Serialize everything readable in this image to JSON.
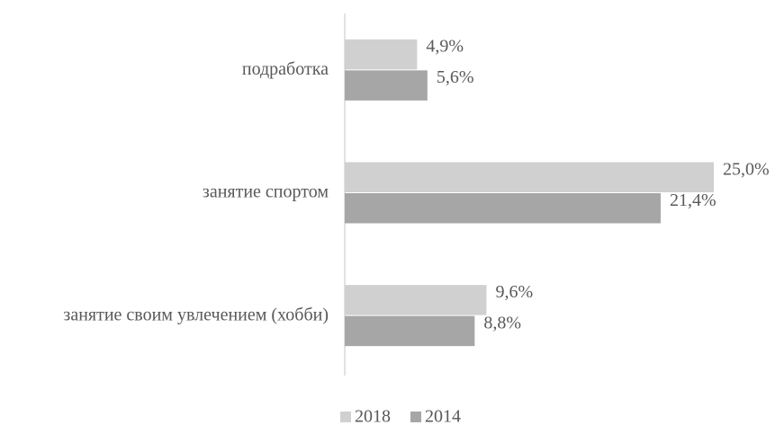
{
  "chart_data": {
    "type": "hbar",
    "categories": [
      "подработка",
      "занятие спортом",
      "занятие своим увлечением (хобби)"
    ],
    "series": [
      {
        "name": "2018",
        "color": "#d0d0d0",
        "values": [
          4.9,
          25.0,
          9.6
        ],
        "value_labels": [
          "4,9%",
          "25,0%",
          "9,6%"
        ]
      },
      {
        "name": "2014",
        "color": "#a6a6a6",
        "values": [
          5.6,
          21.4,
          8.8
        ],
        "value_labels": [
          "5,6%",
          "21,4%",
          "8,8%"
        ]
      }
    ],
    "legend": "bottom"
  }
}
